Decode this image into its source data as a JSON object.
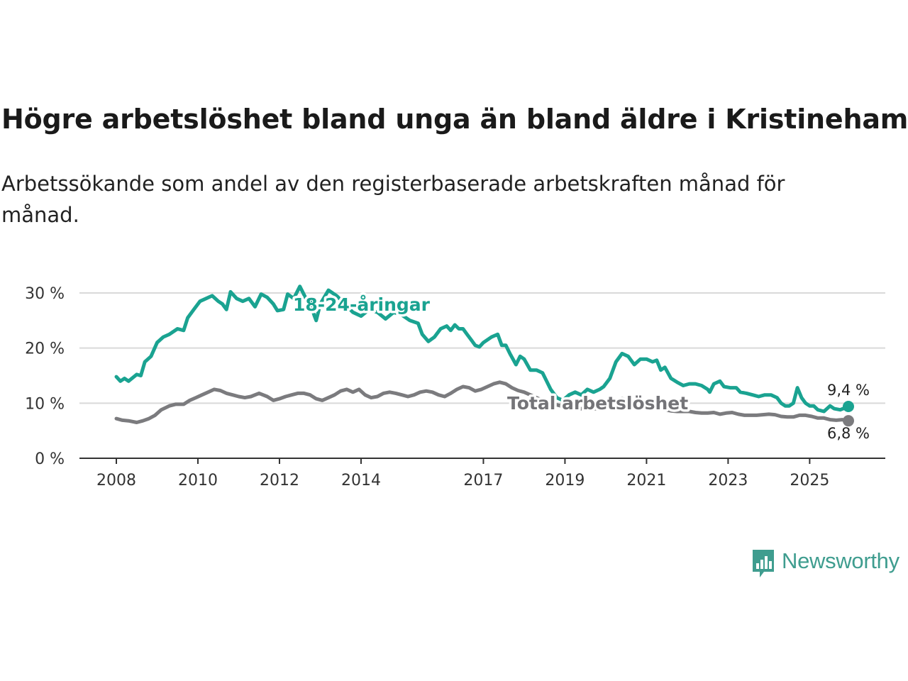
{
  "chart_data": {
    "type": "line",
    "title": "Högre arbetslöshet bland unga än bland äldre i Kristinehamn",
    "subtitle": "Arbetssökande som andel av den registerbaserade arbetskraften månad för månad.",
    "xlabel": "",
    "ylabel": "",
    "x_ticks": [
      "2008",
      "2010",
      "2012",
      "2014",
      "2017",
      "2019",
      "2021",
      "2023",
      "2025"
    ],
    "y_ticks": [
      "0 %",
      "10 %",
      "20 %",
      "30 %"
    ],
    "ylim": [
      0,
      30
    ],
    "xlim": [
      2008.0,
      2025.95
    ],
    "grid": true,
    "series": [
      {
        "name": "18-24-åringar",
        "color": "#1aa391",
        "end_label": "9,4 %",
        "points": [
          [
            2008.0,
            14.8
          ],
          [
            2008.1,
            14.0
          ],
          [
            2008.2,
            14.5
          ],
          [
            2008.3,
            14.0
          ],
          [
            2008.4,
            14.6
          ],
          [
            2008.5,
            15.2
          ],
          [
            2008.6,
            15.0
          ],
          [
            2008.7,
            17.5
          ],
          [
            2008.85,
            18.5
          ],
          [
            2009.0,
            21.0
          ],
          [
            2009.15,
            22.0
          ],
          [
            2009.3,
            22.5
          ],
          [
            2009.5,
            23.5
          ],
          [
            2009.65,
            23.2
          ],
          [
            2009.75,
            25.5
          ],
          [
            2009.9,
            27.0
          ],
          [
            2010.05,
            28.5
          ],
          [
            2010.2,
            29.0
          ],
          [
            2010.35,
            29.5
          ],
          [
            2010.5,
            28.5
          ],
          [
            2010.6,
            28.0
          ],
          [
            2010.7,
            27.0
          ],
          [
            2010.8,
            30.2
          ],
          [
            2010.95,
            29.0
          ],
          [
            2011.1,
            28.5
          ],
          [
            2011.25,
            29.0
          ],
          [
            2011.4,
            27.5
          ],
          [
            2011.55,
            29.8
          ],
          [
            2011.7,
            29.2
          ],
          [
            2011.85,
            28.0
          ],
          [
            2011.95,
            26.8
          ],
          [
            2012.1,
            27.0
          ],
          [
            2012.2,
            29.8
          ],
          [
            2012.35,
            29.0
          ],
          [
            2012.5,
            31.2
          ],
          [
            2012.65,
            29.0
          ],
          [
            2012.75,
            28.5
          ],
          [
            2012.85,
            26.0
          ],
          [
            2012.9,
            25.0
          ],
          [
            2013.0,
            28.0
          ],
          [
            2013.2,
            30.5
          ],
          [
            2013.4,
            29.5
          ],
          [
            2013.6,
            28.0
          ],
          [
            2013.8,
            26.5
          ],
          [
            2014.0,
            25.8
          ],
          [
            2014.2,
            27.0
          ],
          [
            2014.4,
            26.5
          ],
          [
            2014.6,
            25.3
          ],
          [
            2014.8,
            26.5
          ],
          [
            2015.0,
            26.0
          ],
          [
            2015.2,
            25.0
          ],
          [
            2015.4,
            24.5
          ],
          [
            2015.5,
            22.5
          ],
          [
            2015.65,
            21.2
          ],
          [
            2015.8,
            22.0
          ],
          [
            2015.95,
            23.5
          ],
          [
            2016.1,
            24.0
          ],
          [
            2016.2,
            23.2
          ],
          [
            2016.3,
            24.2
          ],
          [
            2016.4,
            23.5
          ],
          [
            2016.5,
            23.5
          ],
          [
            2016.6,
            22.5
          ],
          [
            2016.7,
            21.5
          ],
          [
            2016.8,
            20.5
          ],
          [
            2016.9,
            20.2
          ],
          [
            2017.0,
            21.0
          ],
          [
            2017.2,
            22.0
          ],
          [
            2017.35,
            22.5
          ],
          [
            2017.45,
            20.5
          ],
          [
            2017.55,
            20.5
          ],
          [
            2017.65,
            19.0
          ],
          [
            2017.8,
            17.0
          ],
          [
            2017.9,
            18.5
          ],
          [
            2018.0,
            18.0
          ],
          [
            2018.15,
            16.0
          ],
          [
            2018.3,
            16.0
          ],
          [
            2018.45,
            15.5
          ],
          [
            2018.55,
            14.0
          ],
          [
            2018.65,
            12.5
          ],
          [
            2018.8,
            11.0
          ],
          [
            2018.95,
            10.5
          ],
          [
            2019.1,
            11.5
          ],
          [
            2019.25,
            12.0
          ],
          [
            2019.4,
            11.5
          ],
          [
            2019.55,
            12.5
          ],
          [
            2019.7,
            12.0
          ],
          [
            2019.85,
            12.5
          ],
          [
            2019.95,
            13.0
          ],
          [
            2020.1,
            14.5
          ],
          [
            2020.25,
            17.5
          ],
          [
            2020.4,
            19.0
          ],
          [
            2020.55,
            18.5
          ],
          [
            2020.7,
            17.0
          ],
          [
            2020.85,
            18.0
          ],
          [
            2021.0,
            18.0
          ],
          [
            2021.15,
            17.5
          ],
          [
            2021.25,
            17.8
          ],
          [
            2021.35,
            16.0
          ],
          [
            2021.45,
            16.5
          ],
          [
            2021.6,
            14.5
          ],
          [
            2021.75,
            13.8
          ],
          [
            2021.9,
            13.2
          ],
          [
            2022.05,
            13.5
          ],
          [
            2022.2,
            13.5
          ],
          [
            2022.35,
            13.2
          ],
          [
            2022.5,
            12.5
          ],
          [
            2022.55,
            12.0
          ],
          [
            2022.65,
            13.5
          ],
          [
            2022.8,
            14.0
          ],
          [
            2022.9,
            13.0
          ],
          [
            2023.05,
            12.8
          ],
          [
            2023.2,
            12.8
          ],
          [
            2023.3,
            12.0
          ],
          [
            2023.45,
            11.8
          ],
          [
            2023.6,
            11.5
          ],
          [
            2023.75,
            11.2
          ],
          [
            2023.9,
            11.5
          ],
          [
            2024.05,
            11.5
          ],
          [
            2024.2,
            11.0
          ],
          [
            2024.3,
            10.0
          ],
          [
            2024.4,
            9.5
          ],
          [
            2024.5,
            9.5
          ],
          [
            2024.6,
            10.0
          ],
          [
            2024.7,
            12.8
          ],
          [
            2024.8,
            11.0
          ],
          [
            2024.9,
            10.0
          ],
          [
            2025.0,
            9.5
          ],
          [
            2025.1,
            9.5
          ],
          [
            2025.2,
            8.8
          ],
          [
            2025.35,
            8.5
          ],
          [
            2025.5,
            9.5
          ],
          [
            2025.6,
            9.0
          ],
          [
            2025.75,
            8.8
          ],
          [
            2025.95,
            9.4
          ]
        ]
      },
      {
        "name": "Total arbetslöshet",
        "color": "#7b7b7e",
        "end_label": "6,8 %",
        "points": [
          [
            2008.0,
            7.2
          ],
          [
            2008.15,
            6.9
          ],
          [
            2008.3,
            6.8
          ],
          [
            2008.5,
            6.5
          ],
          [
            2008.65,
            6.8
          ],
          [
            2008.8,
            7.2
          ],
          [
            2008.95,
            7.8
          ],
          [
            2009.1,
            8.8
          ],
          [
            2009.3,
            9.5
          ],
          [
            2009.45,
            9.8
          ],
          [
            2009.65,
            9.8
          ],
          [
            2009.8,
            10.5
          ],
          [
            2009.95,
            11.0
          ],
          [
            2010.1,
            11.5
          ],
          [
            2010.25,
            12.0
          ],
          [
            2010.4,
            12.5
          ],
          [
            2010.55,
            12.3
          ],
          [
            2010.7,
            11.8
          ],
          [
            2010.85,
            11.5
          ],
          [
            2011.0,
            11.2
          ],
          [
            2011.15,
            11.0
          ],
          [
            2011.3,
            11.2
          ],
          [
            2011.5,
            11.8
          ],
          [
            2011.7,
            11.2
          ],
          [
            2011.85,
            10.5
          ],
          [
            2012.0,
            10.8
          ],
          [
            2012.15,
            11.2
          ],
          [
            2012.3,
            11.5
          ],
          [
            2012.45,
            11.8
          ],
          [
            2012.6,
            11.8
          ],
          [
            2012.75,
            11.5
          ],
          [
            2012.9,
            10.8
          ],
          [
            2013.05,
            10.5
          ],
          [
            2013.2,
            11.0
          ],
          [
            2013.35,
            11.5
          ],
          [
            2013.5,
            12.2
          ],
          [
            2013.65,
            12.5
          ],
          [
            2013.8,
            12.0
          ],
          [
            2013.95,
            12.5
          ],
          [
            2014.1,
            11.5
          ],
          [
            2014.25,
            11.0
          ],
          [
            2014.4,
            11.2
          ],
          [
            2014.55,
            11.8
          ],
          [
            2014.7,
            12.0
          ],
          [
            2014.85,
            11.8
          ],
          [
            2015.0,
            11.5
          ],
          [
            2015.15,
            11.2
          ],
          [
            2015.3,
            11.5
          ],
          [
            2015.45,
            12.0
          ],
          [
            2015.6,
            12.2
          ],
          [
            2015.75,
            12.0
          ],
          [
            2015.9,
            11.5
          ],
          [
            2016.05,
            11.2
          ],
          [
            2016.2,
            11.8
          ],
          [
            2016.35,
            12.5
          ],
          [
            2016.5,
            13.0
          ],
          [
            2016.65,
            12.8
          ],
          [
            2016.8,
            12.2
          ],
          [
            2016.95,
            12.5
          ],
          [
            2017.1,
            13.0
          ],
          [
            2017.25,
            13.5
          ],
          [
            2017.4,
            13.8
          ],
          [
            2017.55,
            13.5
          ],
          [
            2017.7,
            12.8
          ],
          [
            2017.85,
            12.3
          ],
          [
            2018.0,
            12.0
          ],
          [
            2018.15,
            11.5
          ],
          [
            2018.3,
            11.0
          ],
          [
            2018.45,
            10.5
          ],
          [
            2018.6,
            10.0
          ],
          [
            2018.75,
            9.8
          ],
          [
            2018.9,
            9.5
          ],
          [
            2019.05,
            9.5
          ],
          [
            2019.2,
            9.2
          ],
          [
            2019.35,
            9.0
          ],
          [
            2019.5,
            9.0
          ],
          [
            2019.65,
            9.0
          ],
          [
            2019.8,
            9.0
          ],
          [
            2019.95,
            9.2
          ],
          [
            2020.1,
            9.5
          ],
          [
            2020.25,
            10.5
          ],
          [
            2020.4,
            10.8
          ],
          [
            2020.55,
            10.5
          ],
          [
            2020.7,
            10.0
          ],
          [
            2020.85,
            9.8
          ],
          [
            2021.0,
            9.5
          ],
          [
            2021.15,
            9.2
          ],
          [
            2021.3,
            9.0
          ],
          [
            2021.45,
            8.8
          ],
          [
            2021.6,
            8.6
          ],
          [
            2021.75,
            8.5
          ],
          [
            2021.9,
            8.5
          ],
          [
            2022.05,
            8.5
          ],
          [
            2022.2,
            8.3
          ],
          [
            2022.35,
            8.2
          ],
          [
            2022.5,
            8.2
          ],
          [
            2022.65,
            8.3
          ],
          [
            2022.8,
            8.0
          ],
          [
            2022.95,
            8.2
          ],
          [
            2023.1,
            8.3
          ],
          [
            2023.25,
            8.0
          ],
          [
            2023.4,
            7.8
          ],
          [
            2023.55,
            7.8
          ],
          [
            2023.7,
            7.8
          ],
          [
            2023.85,
            7.9
          ],
          [
            2024.0,
            8.0
          ],
          [
            2024.15,
            7.9
          ],
          [
            2024.3,
            7.6
          ],
          [
            2024.45,
            7.5
          ],
          [
            2024.6,
            7.5
          ],
          [
            2024.75,
            7.8
          ],
          [
            2024.9,
            7.8
          ],
          [
            2025.05,
            7.6
          ],
          [
            2025.2,
            7.3
          ],
          [
            2025.35,
            7.3
          ],
          [
            2025.5,
            7.0
          ],
          [
            2025.65,
            6.9
          ],
          [
            2025.8,
            7.0
          ],
          [
            2025.95,
            6.8
          ]
        ]
      }
    ]
  },
  "logo": {
    "text": "Newsworthy",
    "color": "#3f9d8f"
  }
}
